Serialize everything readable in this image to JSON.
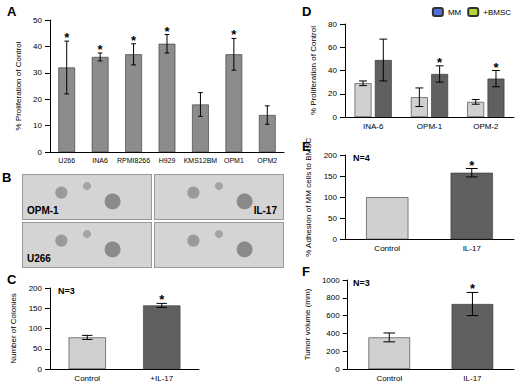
{
  "chart_data": [
    {
      "type": "bar",
      "title": "A",
      "categories": [
        "U266",
        "INA6",
        "RPMI8266",
        "H929",
        "KMS12BM",
        "OPM1",
        "OPM2"
      ],
      "y_label": "% Proliferation of Control",
      "ylim": [
        0,
        50
      ],
      "yticks": [
        0,
        10,
        20,
        30,
        40,
        50
      ],
      "grid": false,
      "values": [
        32,
        36,
        37,
        41,
        18,
        37,
        14
      ],
      "errors": [
        10,
        1.5,
        4,
        3.5,
        4.5,
        6,
        3.5
      ],
      "significance": [
        "*",
        "*",
        "*",
        "*",
        null,
        "*",
        null
      ],
      "color": "#8c8c8c"
    },
    {
      "type": "image_grid",
      "title": "B",
      "panels": [
        {
          "label": "OPM-1"
        },
        {
          "label": "IL-17"
        },
        {
          "label": "U266"
        },
        {
          "label": null
        }
      ]
    },
    {
      "type": "bar",
      "title": "C",
      "annotation": "N=3",
      "categories": [
        "Control",
        "+IL-17"
      ],
      "y_label": "Number of Colonies",
      "ylim": [
        0,
        200
      ],
      "yticks": [
        0,
        50,
        100,
        150,
        200
      ],
      "grid": false,
      "values": [
        78,
        157
      ],
      "errors": [
        5,
        5
      ],
      "significance": [
        null,
        "*"
      ],
      "colors": [
        "#d0d0d0",
        "#606060"
      ]
    },
    {
      "type": "bar",
      "title": "D",
      "legend": "upper right",
      "categories": [
        "INA-6",
        "OPM-1",
        "OPM-2"
      ],
      "y_label": "% Proliferation of Control",
      "ylim": [
        0,
        80
      ],
      "yticks": [
        0,
        20,
        40,
        60,
        80
      ],
      "grid": false,
      "series": [
        {
          "name": "MM",
          "color": "#d0d0d0",
          "values": [
            29,
            17,
            13
          ],
          "errors": [
            2,
            8,
            2
          ],
          "significance": [
            null,
            null,
            null
          ]
        },
        {
          "name": "+BMSC",
          "color": "#606060",
          "values": [
            49,
            37,
            33
          ],
          "errors": [
            18,
            7,
            7
          ],
          "significance": [
            null,
            "*",
            "*"
          ]
        }
      ]
    },
    {
      "type": "bar",
      "title": "E",
      "annotation": "N=4",
      "categories": [
        "Control",
        "IL-17"
      ],
      "y_label": "% Adhesion of MM cells to BMSC",
      "ylim": [
        0,
        200
      ],
      "yticks": [
        0,
        50,
        100,
        150,
        200
      ],
      "grid": false,
      "values": [
        100,
        158
      ],
      "errors": [
        0,
        10
      ],
      "significance": [
        null,
        "*"
      ],
      "colors": [
        "#d0d0d0",
        "#606060"
      ]
    },
    {
      "type": "bar",
      "title": "F",
      "annotation": "N=3",
      "categories": [
        "Control",
        "IL-17"
      ],
      "y_label": "Tumor volume (mm)",
      "ylim": [
        0,
        1000
      ],
      "yticks": [
        0,
        200,
        400,
        600,
        800,
        1000
      ],
      "grid": false,
      "values": [
        355,
        730
      ],
      "errors": [
        50,
        130
      ],
      "significance": [
        null,
        "*"
      ],
      "colors": [
        "#d0d0d0",
        "#606060"
      ]
    }
  ]
}
